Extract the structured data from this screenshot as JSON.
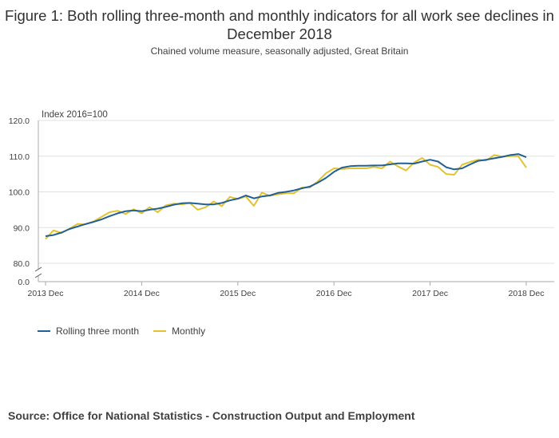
{
  "title": "Figure 1: Both rolling three-month and monthly indicators for all work see declines in December 2018",
  "subtitle": "Chained volume measure, seasonally adjusted, Great Britain",
  "source": "Source: Office for National Statistics - Construction Output and Employment",
  "colors": {
    "rolling": "#206095",
    "monthly": "#e3c230",
    "grid": "#e0e0e0",
    "axis": "#aaaaaa"
  },
  "chart_data": {
    "type": "line",
    "unit_label": "Index 2016=100",
    "x": [
      "2013 Dec",
      "2014 Jan",
      "2014 Feb",
      "2014 Mar",
      "2014 Apr",
      "2014 May",
      "2014 Jun",
      "2014 Jul",
      "2014 Aug",
      "2014 Sep",
      "2014 Oct",
      "2014 Nov",
      "2014 Dec",
      "2015 Jan",
      "2015 Feb",
      "2015 Mar",
      "2015 Apr",
      "2015 May",
      "2015 Jun",
      "2015 Jul",
      "2015 Aug",
      "2015 Sep",
      "2015 Oct",
      "2015 Nov",
      "2015 Dec",
      "2016 Jan",
      "2016 Feb",
      "2016 Mar",
      "2016 Apr",
      "2016 May",
      "2016 Jun",
      "2016 Jul",
      "2016 Aug",
      "2016 Sep",
      "2016 Oct",
      "2016 Nov",
      "2016 Dec",
      "2017 Jan",
      "2017 Feb",
      "2017 Mar",
      "2017 Apr",
      "2017 May",
      "2017 Jun",
      "2017 Jul",
      "2017 Aug",
      "2017 Sep",
      "2017 Oct",
      "2017 Nov",
      "2017 Dec",
      "2018 Jan",
      "2018 Feb",
      "2018 Mar",
      "2018 Apr",
      "2018 May",
      "2018 Jun",
      "2018 Jul",
      "2018 Aug",
      "2018 Sep",
      "2018 Oct",
      "2018 Nov",
      "2018 Dec"
    ],
    "x_ticks": [
      "2013 Dec",
      "2014 Dec",
      "2015 Dec",
      "2016 Dec",
      "2017 Dec",
      "2018 Dec"
    ],
    "y_ticks": [
      "120.0",
      "110.0",
      "100.0",
      "90.0",
      "80.0",
      "0.0"
    ],
    "ylim": [
      80,
      120
    ],
    "axis_break": true,
    "grid": true,
    "legend_position": "bottom-left",
    "series": [
      {
        "name": "Rolling three month",
        "color": "#206095",
        "values": [
          87.6,
          87.9,
          88.6,
          89.6,
          90.3,
          91.0,
          91.6,
          92.3,
          93.2,
          94.0,
          94.6,
          94.8,
          94.6,
          95.0,
          95.3,
          95.8,
          96.4,
          96.8,
          96.9,
          96.7,
          96.5,
          96.5,
          96.9,
          97.6,
          98.1,
          99.0,
          98.2,
          98.7,
          99.0,
          99.7,
          100.0,
          100.4,
          101.0,
          101.5,
          102.6,
          103.9,
          105.6,
          106.8,
          107.2,
          107.3,
          107.3,
          107.4,
          107.4,
          107.7,
          108.0,
          108.0,
          107.9,
          108.5,
          109.0,
          108.5,
          106.9,
          106.3,
          106.6,
          107.7,
          108.7,
          109.0,
          109.4,
          109.8,
          110.3,
          110.6,
          109.7
        ]
      },
      {
        "name": "Monthly",
        "color": "#e3c230",
        "values": [
          86.8,
          89.2,
          88.5,
          89.7,
          91.0,
          90.9,
          91.7,
          93.0,
          94.3,
          94.7,
          93.8,
          95.1,
          94.0,
          95.7,
          94.3,
          96.2,
          96.7,
          96.5,
          96.9,
          95.0,
          95.7,
          97.3,
          96.0,
          98.6,
          98.0,
          98.7,
          96.1,
          99.8,
          98.9,
          99.3,
          99.6,
          99.6,
          101.2,
          101.2,
          103.0,
          105.2,
          106.6,
          106.4,
          106.6,
          106.6,
          106.6,
          107.0,
          106.6,
          108.5,
          107.1,
          106.0,
          108.2,
          109.5,
          107.6,
          107.0,
          105.0,
          104.8,
          107.6,
          108.4,
          109.0,
          108.8,
          110.3,
          109.9,
          110.0,
          110.0,
          106.8
        ]
      }
    ]
  }
}
